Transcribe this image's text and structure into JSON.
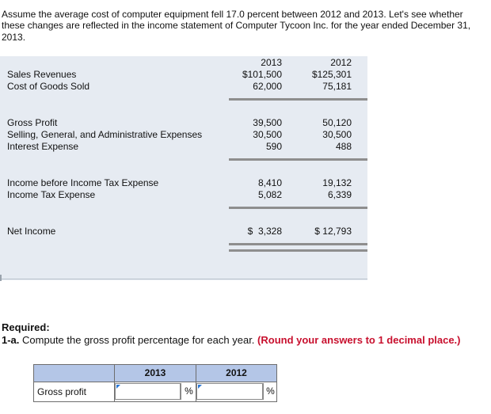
{
  "intro": "Assume the average cost of computer equipment fell 17.0 percent between 2012 and 2013. Let's see whether these changes are reflected in the income statement of Computer Tycoon Inc. for the year ended December 31, 2013.",
  "statement": {
    "headers": {
      "y2013": "2013",
      "y2012": "2012"
    },
    "sales_revenues": {
      "label": "Sales Revenues",
      "y2013": "$101,500",
      "y2012": "$125,301"
    },
    "cogs": {
      "label": "Cost of Goods Sold",
      "y2013": "62,000",
      "y2012": "75,181"
    },
    "gross_profit": {
      "label": "Gross Profit",
      "y2013": "39,500",
      "y2012": "50,120"
    },
    "sga": {
      "label": "Selling, General, and Administrative Expenses",
      "y2013": "30,500",
      "y2012": "30,500"
    },
    "interest": {
      "label": "Interest Expense",
      "y2013": "590",
      "y2012": "488"
    },
    "income_before_tax": {
      "label": "Income before Income Tax Expense",
      "y2013": "8,410",
      "y2012": "19,132"
    },
    "tax": {
      "label": "Income Tax Expense",
      "y2013": "5,082",
      "y2012": "6,339"
    },
    "net_income": {
      "label": "Net Income",
      "y2013": "$  3,328",
      "y2012": "$ 12,793"
    }
  },
  "required": {
    "heading": "Required:",
    "item_number": "1-a.",
    "instruction": "Compute the gross profit percentage for each year.",
    "note": "(Round your answers to 1 decimal place.)"
  },
  "answer_table": {
    "col_2013": "2013",
    "col_2012": "2012",
    "row_label": "Gross profit",
    "input_2013": "",
    "input_2012": "",
    "unit": "%"
  },
  "colors": {
    "header_blue": "#b4c6e7",
    "statement_bg": "#e6ebf2",
    "note_red": "#c8102e",
    "caret_blue": "#2b78d6"
  }
}
